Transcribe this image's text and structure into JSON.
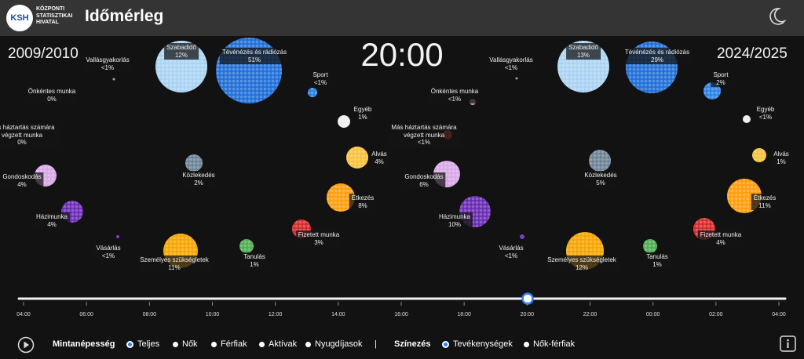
{
  "header": {
    "logo": "KSH",
    "logo_lines": [
      "KÖZPONTI",
      "STATISZTIKAI",
      "HIVATAL"
    ],
    "title": "Időmérleg"
  },
  "clock": "20:00",
  "panels": [
    {
      "period": "2009/2010",
      "activities": [
        {
          "label": "Szabadidő",
          "share": "12%",
          "color": "#a9d3f3"
        },
        {
          "label": "Tévénézés és rádiózás",
          "share": "51%",
          "color": "#1f6fd8"
        },
        {
          "label": "Vallásgyakorlás",
          "share": "<1%",
          "color": "#b0a0a0"
        },
        {
          "label": "Sport",
          "share": "<1%",
          "color": "#2b82e6"
        },
        {
          "label": "Önkéntes munka",
          "share": "0%",
          "color": "#d8a0a0"
        },
        {
          "label": "Egyéb",
          "share": "1%",
          "color": "#eeeeee"
        },
        {
          "label": "Más háztartás számára végzett munka",
          "share": "0%",
          "color": "#c8262c"
        },
        {
          "label": "Alvás",
          "share": "4%",
          "color": "#f8c23a"
        },
        {
          "label": "Közlekedés",
          "share": "2%",
          "color": "#6c8295"
        },
        {
          "label": "Gondoskodás",
          "share": "4%",
          "color": "#d9a7e8"
        },
        {
          "label": "Étkezés",
          "share": "8%",
          "color": "#ff9d0d"
        },
        {
          "label": "Házimunka",
          "share": "4%",
          "color": "#6a2bb3"
        },
        {
          "label": "Fizetett munka",
          "share": "3%",
          "color": "#d42a2a"
        },
        {
          "label": "Vásárlás",
          "share": "<1%",
          "color": "#7c3fc4"
        },
        {
          "label": "Személyes szükségletek",
          "share": "11%",
          "color": "#f5a400"
        },
        {
          "label": "Tanulás",
          "share": "1%",
          "color": "#4cae50"
        }
      ]
    },
    {
      "period": "2024/2025",
      "activities": [
        {
          "label": "Szabadidő",
          "share": "13%",
          "color": "#a9d3f3"
        },
        {
          "label": "Tévénézés és rádiózás",
          "share": "29%",
          "color": "#1f6fd8"
        },
        {
          "label": "Vallásgyakorlás",
          "share": "<1%",
          "color": "#b0a0a0"
        },
        {
          "label": "Sport",
          "share": "2%",
          "color": "#2b82e6"
        },
        {
          "label": "Önkéntes munka",
          "share": "<1%",
          "color": "#d8a0a0"
        },
        {
          "label": "Egyéb",
          "share": "<1%",
          "color": "#eeeeee"
        },
        {
          "label": "Más háztartás számára végzett munka",
          "share": "<1%",
          "color": "#c8262c"
        },
        {
          "label": "Alvás",
          "share": "1%",
          "color": "#f8c23a"
        },
        {
          "label": "Közlekedés",
          "share": "5%",
          "color": "#6c8295"
        },
        {
          "label": "Gondoskodás",
          "share": "6%",
          "color": "#d9a7e8"
        },
        {
          "label": "Étkezés",
          "share": "11%",
          "color": "#ff9d0d"
        },
        {
          "label": "Házimunka",
          "share": "10%",
          "color": "#6a2bb3"
        },
        {
          "label": "Fizetett munka",
          "share": "4%",
          "color": "#d42a2a"
        },
        {
          "label": "Vásárlás",
          "share": "<1%",
          "color": "#7c3fc4"
        },
        {
          "label": "Személyes szükségletek",
          "share": "12%",
          "color": "#f5a400"
        },
        {
          "label": "Tanulás",
          "share": "1%",
          "color": "#4cae50"
        }
      ]
    }
  ],
  "timeline": {
    "ticks": [
      "04:00",
      "06:00",
      "08:00",
      "10:00",
      "12:00",
      "14:00",
      "16:00",
      "18:00",
      "20:00",
      "22:00",
      "00:00",
      "02:00",
      "04:00"
    ]
  },
  "controls": {
    "sample_label": "Mintanépesség",
    "sample_options": [
      {
        "label": "Teljes",
        "selected": true
      },
      {
        "label": "Nők",
        "selected": false
      },
      {
        "label": "Férfiak",
        "selected": false
      },
      {
        "label": "Aktívak",
        "selected": false
      },
      {
        "label": "Nyugdíjasok",
        "selected": false
      }
    ],
    "separator": "|",
    "coloring_label": "Színezés",
    "coloring_options": [
      {
        "label": "Tevékenységek",
        "selected": true
      },
      {
        "label": "Nők-férfiak",
        "selected": false
      }
    ]
  }
}
